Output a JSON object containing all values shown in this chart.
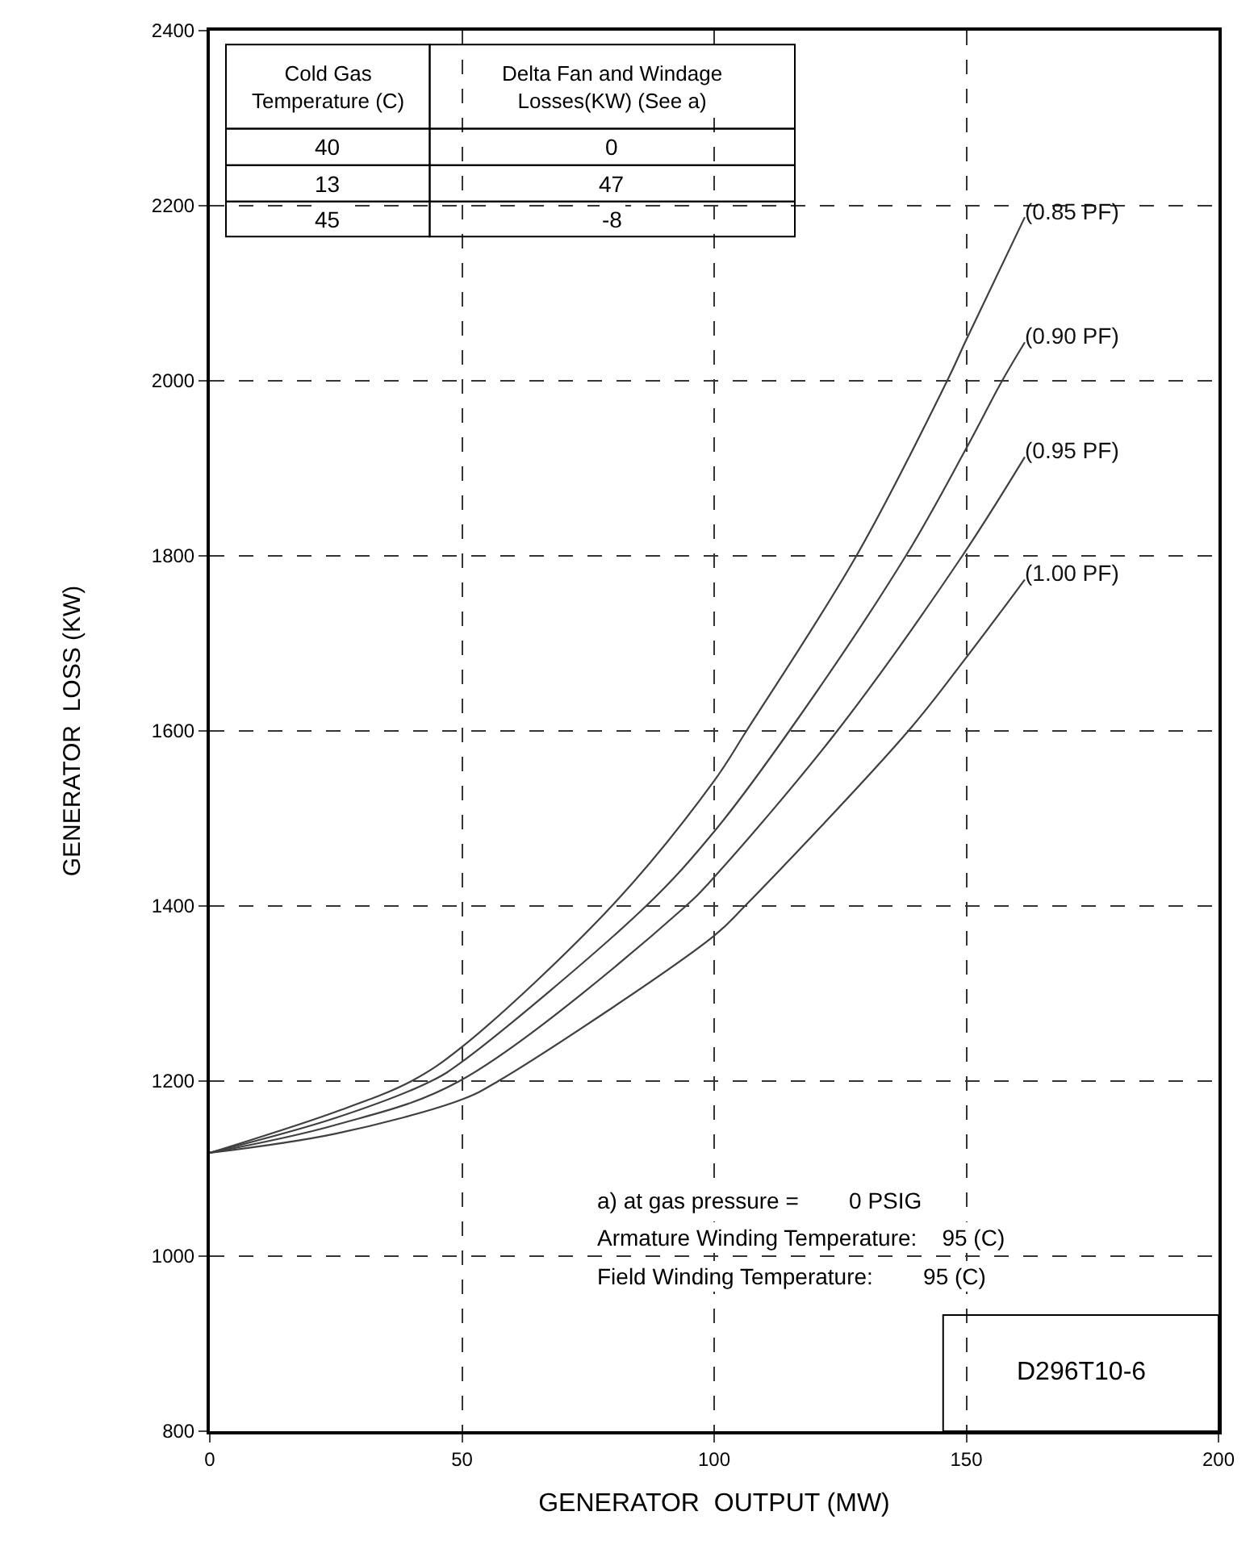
{
  "chart_data": {
    "type": "line",
    "xlabel": "GENERATOR  OUTPUT (MW)",
    "ylabel": "GENERATOR  LOSS (KW)",
    "xlim": [
      0,
      200
    ],
    "xticks": [
      0,
      50,
      100,
      150,
      200
    ],
    "ylim": [
      800,
      2400
    ],
    "yticks": [
      800,
      1000,
      1200,
      1400,
      1600,
      1800,
      2000,
      2200,
      2400
    ],
    "grid": true,
    "legend": false,
    "marker": "none",
    "line_style": "solid",
    "series": [
      {
        "name": "(0.85 PF)",
        "color": "#404040",
        "x": [
          0,
          25,
          40,
          50,
          79.7,
          100,
          106.4,
          128.2,
          146.2,
          150,
          161.6
        ],
        "values": [
          1118,
          1165,
          1200,
          1239,
          1400,
          1543,
          1600,
          1800,
          2000,
          2047,
          2187
        ]
      },
      {
        "name": "(0.90 PF)",
        "color": "#404040",
        "x": [
          0,
          25,
          43.9,
          50,
          86.5,
          100,
          114.9,
          138,
          150,
          157.1,
          161.6
        ],
        "values": [
          1118,
          1158,
          1200,
          1222,
          1400,
          1485,
          1600,
          1800,
          1923,
          2000,
          2044
        ]
      },
      {
        "name": "(0.95 PF)",
        "color": "#404040",
        "x": [
          0,
          25,
          49.5,
          94.4,
          100,
          124.4,
          149.2,
          161.6
        ],
        "values": [
          1118,
          1150,
          1200,
          1400,
          1433,
          1600,
          1800,
          1913
        ]
      },
      {
        "name": "(1.00 PF)",
        "color": "#404040",
        "x": [
          0,
          25,
          50,
          57.2,
          100,
          106.1,
          138.5,
          150,
          161.6
        ],
        "values": [
          1118,
          1140,
          1179,
          1200,
          1366,
          1400,
          1600,
          1684,
          1773
        ]
      }
    ],
    "annotations": [
      "Cold Gas\nTemperature (C)",
      "Delta Fan and Windage\nLosses(KW) (See a)",
      "40",
      "0",
      "13",
      "47",
      "45",
      "-8",
      "a) at gas pressure =        0 PSIG",
      "Armature Winding Temperature:    95 (C)",
      "Field Winding Temperature:        95 (C)",
      "D296T10-6"
    ]
  }
}
